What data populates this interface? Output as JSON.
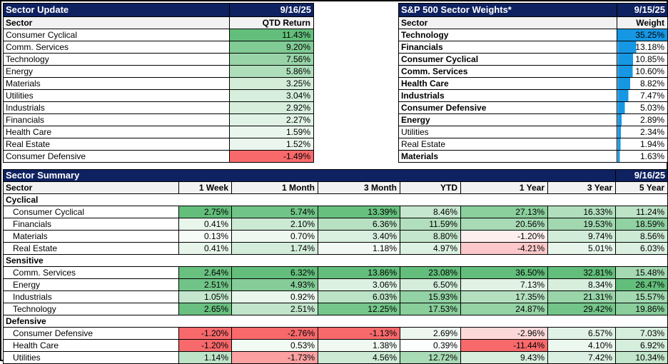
{
  "colors": {
    "navy": "#0E2160",
    "header_gray": "#F2F2F2",
    "scale_green": "#63BE7B",
    "scale_red": "#F8696B",
    "bar_blue": "#1697E4"
  },
  "sector_update": {
    "title": "Sector Update",
    "date": "9/16/25",
    "col_sector": "Sector",
    "col_value": "QTD Return",
    "rows": [
      {
        "sector": "Consumer Cyclical",
        "value": 11.43
      },
      {
        "sector": "Comm. Services",
        "value": 9.2
      },
      {
        "sector": "Technology",
        "value": 7.56
      },
      {
        "sector": "Energy",
        "value": 5.86
      },
      {
        "sector": "Materials",
        "value": 3.25
      },
      {
        "sector": "Utilities",
        "value": 3.04
      },
      {
        "sector": "Industrials",
        "value": 2.92
      },
      {
        "sector": "Financials",
        "value": 2.27
      },
      {
        "sector": "Health Care",
        "value": 1.59
      },
      {
        "sector": "Real Estate",
        "value": 1.52
      },
      {
        "sector": "Consumer Defensive",
        "value": -1.49
      }
    ]
  },
  "sector_weights": {
    "title": "S&P 500 Sector Weights*",
    "date": "9/15/25",
    "col_sector": "Sector",
    "col_value": "Weight",
    "rows": [
      {
        "sector": "Technology",
        "weight": 35.25,
        "bold": true
      },
      {
        "sector": "Financials",
        "weight": 13.18,
        "bold": true
      },
      {
        "sector": "Consumer Cyclical",
        "weight": 10.85,
        "bold": true
      },
      {
        "sector": "Comm. Services",
        "weight": 10.6,
        "bold": true
      },
      {
        "sector": "Health Care",
        "weight": 8.82,
        "bold": true
      },
      {
        "sector": "Industrials",
        "weight": 7.47,
        "bold": true
      },
      {
        "sector": "Consumer Defensive",
        "weight": 5.03,
        "bold": true
      },
      {
        "sector": "Energy",
        "weight": 2.89,
        "bold": true
      },
      {
        "sector": "Utilities",
        "weight": 2.34,
        "bold": false
      },
      {
        "sector": "Real Estate",
        "weight": 1.94,
        "bold": false
      },
      {
        "sector": "Materials",
        "weight": 1.63,
        "bold": true
      }
    ]
  },
  "sector_summary": {
    "title": "Sector Summary",
    "date": "9/16/25",
    "columns": [
      "Sector",
      "1 Week",
      "1 Month",
      "3 Month",
      "YTD",
      "1 Year",
      "3 Year",
      "5 Year"
    ],
    "groups": [
      {
        "name": "Cyclical",
        "rows": [
          {
            "sector": "Consumer Cyclical",
            "values": [
              2.75,
              5.74,
              13.39,
              8.46,
              27.13,
              16.33,
              11.24
            ]
          },
          {
            "sector": "Financials",
            "values": [
              0.41,
              2.1,
              6.36,
              11.59,
              20.56,
              19.53,
              18.59
            ]
          },
          {
            "sector": "Materials",
            "values": [
              0.13,
              0.7,
              3.4,
              8.8,
              -1.2,
              9.74,
              8.56
            ]
          },
          {
            "sector": "Real Estate",
            "values": [
              0.41,
              1.74,
              1.18,
              4.97,
              -4.21,
              5.01,
              6.03
            ]
          }
        ]
      },
      {
        "name": "Sensitive",
        "rows": [
          {
            "sector": "Comm. Services",
            "values": [
              2.64,
              6.32,
              13.86,
              23.08,
              36.5,
              32.81,
              15.48
            ]
          },
          {
            "sector": "Energy",
            "values": [
              2.51,
              4.93,
              3.06,
              6.5,
              7.13,
              8.34,
              26.47
            ]
          },
          {
            "sector": "Industrials",
            "values": [
              1.05,
              0.92,
              6.03,
              15.93,
              17.35,
              21.31,
              15.57
            ]
          },
          {
            "sector": "Technology",
            "values": [
              2.65,
              2.51,
              12.25,
              17.53,
              24.87,
              29.42,
              19.86
            ]
          }
        ]
      },
      {
        "name": "Defensive",
        "rows": [
          {
            "sector": "Consumer Defensive",
            "values": [
              -1.2,
              -2.76,
              -1.13,
              2.69,
              -2.96,
              6.57,
              7.03
            ]
          },
          {
            "sector": "Health Care",
            "values": [
              -1.2,
              0.53,
              1.38,
              0.39,
              -11.44,
              4.1,
              6.92
            ]
          },
          {
            "sector": "Utilities",
            "values": [
              1.14,
              -1.73,
              4.56,
              12.72,
              9.43,
              7.42,
              10.34
            ]
          }
        ]
      }
    ]
  }
}
